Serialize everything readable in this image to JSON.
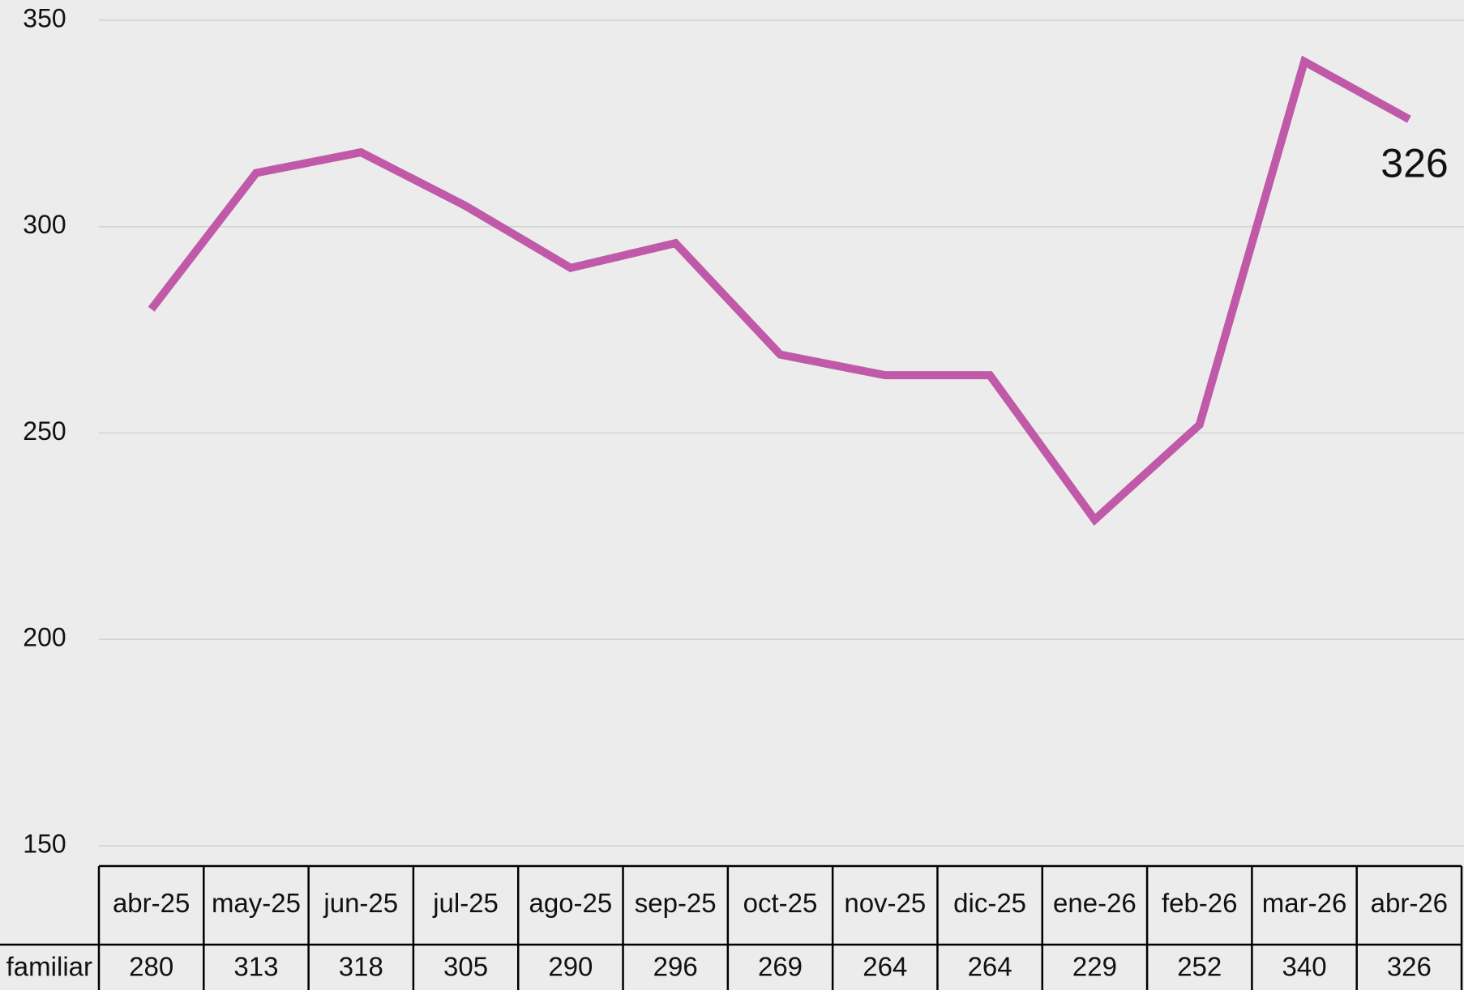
{
  "chart_data": {
    "type": "line",
    "categories": [
      "abr-25",
      "may-25",
      "jun-25",
      "jul-25",
      "ago-25",
      "sep-25",
      "oct-25",
      "nov-25",
      "dic-25",
      "ene-26",
      "feb-26",
      "mar-26",
      "abr-26"
    ],
    "series": [
      {
        "name": "familiar",
        "color": "#c05aa8",
        "values": [
          280,
          313,
          318,
          305,
          290,
          296,
          269,
          264,
          264,
          229,
          252,
          340,
          326
        ]
      }
    ],
    "data_label": "326",
    "ylim": [
      150,
      350
    ],
    "yticks": [
      150,
      200,
      250,
      300,
      350
    ],
    "grid": true
  }
}
